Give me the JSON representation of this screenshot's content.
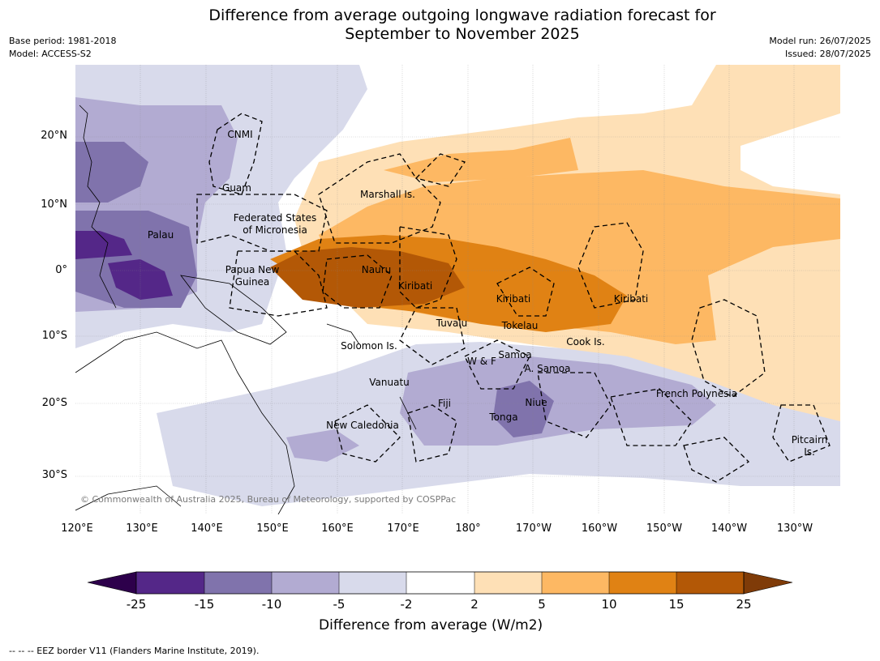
{
  "title_line1": "Difference from average outgoing longwave radiation forecast for",
  "title_line2": "September to November 2025",
  "base_period": "Base period: 1981-2018",
  "model": "Model: ACCESS-S2",
  "model_run": "Model run: 26/07/2025",
  "issued": "Issued: 28/07/2025",
  "lat_labels": [
    "20°N",
    "10°N",
    "0°",
    "10°S",
    "20°S",
    "30°S"
  ],
  "lon_labels": [
    "120°E",
    "130°E",
    "140°E",
    "150°E",
    "160°E",
    "170°E",
    "180°",
    "170°W",
    "160°W",
    "150°W",
    "140°W",
    "130°W"
  ],
  "places": [
    {
      "name": "CNMI"
    },
    {
      "name": "Guam"
    },
    {
      "name": "Marshall Is."
    },
    {
      "name": "Federated States\nof Micronesia"
    },
    {
      "name": "Palau"
    },
    {
      "name": "Papua New\nGuinea"
    },
    {
      "name": "Nauru"
    },
    {
      "name": "Kiribati"
    },
    {
      "name": "Kiribati"
    },
    {
      "name": "Kiribati"
    },
    {
      "name": "Tuvalu"
    },
    {
      "name": "Tokelau"
    },
    {
      "name": "Cook Is."
    },
    {
      "name": "Solomon Is."
    },
    {
      "name": "W & F"
    },
    {
      "name": "Samoa"
    },
    {
      "name": "A. Samoa"
    },
    {
      "name": "Vanuatu"
    },
    {
      "name": "Fiji"
    },
    {
      "name": "Niue"
    },
    {
      "name": "Tonga"
    },
    {
      "name": "French Polynesia"
    },
    {
      "name": "New Caledonia"
    },
    {
      "name": "Pitcairn\nIs."
    }
  ],
  "colorbar": {
    "title": "Difference from average (W/m2)",
    "ticks": [
      "-25",
      "-15",
      "-10",
      "-5",
      "-2",
      "2",
      "5",
      "10",
      "15",
      "25"
    ],
    "colors": {
      "extend_low": "#2d004b",
      "c1": "#542788",
      "c2": "#8073ac",
      "c3": "#b2abd2",
      "c4": "#d8daeb",
      "c5": "#ffffff",
      "c6": "#fee0b6",
      "c7": "#fdb863",
      "c8": "#e08214",
      "c9": "#b35806",
      "extend_high": "#7f3b08"
    }
  },
  "copyright": "© Commonwealth of Australia 2025, Bureau of Meteorology, supported by COSPPac",
  "footer": "--  --  -- EEZ border V11 (Flanders Marine Institute, 2019)."
}
